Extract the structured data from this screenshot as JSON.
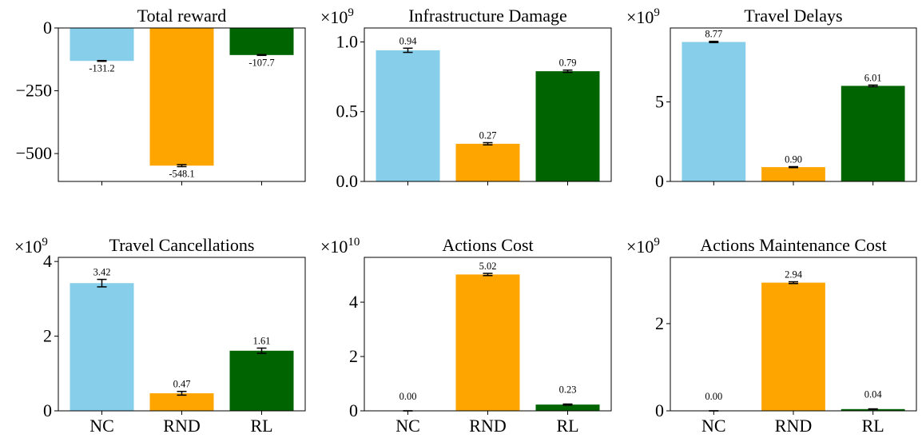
{
  "colors": {
    "NC": "#87ceeb",
    "RND": "#ffa500",
    "RL": "#006400"
  },
  "chart_data": [
    {
      "type": "bar",
      "title": "Total reward",
      "categories": [
        "NC",
        "RND",
        "RL"
      ],
      "show_xticklabels": false,
      "values": [
        -131.2,
        -548.1,
        -107.7
      ],
      "errors": [
        1.5,
        4,
        1.5
      ],
      "labels": [
        "-131.2",
        "-548.1",
        "-107.7"
      ],
      "multiplier": "",
      "ylim": [
        -611,
        0
      ],
      "yticks": [
        0,
        -250,
        -500
      ],
      "ytick_labels": [
        "0",
        "−250",
        "−500"
      ]
    },
    {
      "type": "bar",
      "title": "Infrastructure Damage",
      "categories": [
        "NC",
        "RND",
        "RL"
      ],
      "show_xticklabels": false,
      "values": [
        0.94,
        0.27,
        0.79
      ],
      "errors": [
        0.015,
        0.008,
        0.008
      ],
      "labels": [
        "0.94",
        "0.27",
        "0.79"
      ],
      "multiplier": "×10",
      "multiplier_exp": "9",
      "ylim": [
        0,
        1.1
      ],
      "yticks": [
        0,
        0.5,
        1.0
      ],
      "ytick_labels": [
        "0.0",
        "0.5",
        "1.0"
      ]
    },
    {
      "type": "bar",
      "title": "Travel Delays",
      "categories": [
        "NC",
        "RND",
        "RL"
      ],
      "show_xticklabels": false,
      "values": [
        8.77,
        0.9,
        6.01
      ],
      "errors": [
        0.04,
        0.03,
        0.05
      ],
      "labels": [
        "8.77",
        "0.90",
        "6.01"
      ],
      "multiplier": "×10",
      "multiplier_exp": "9",
      "ylim": [
        0,
        9.65
      ],
      "yticks": [
        0,
        5
      ],
      "ytick_labels": [
        "0",
        "5"
      ]
    },
    {
      "type": "bar",
      "title": "Travel Cancellations",
      "categories": [
        "NC",
        "RND",
        "RL"
      ],
      "show_xticklabels": true,
      "values": [
        3.42,
        0.47,
        1.61
      ],
      "errors": [
        0.1,
        0.05,
        0.07
      ],
      "labels": [
        "3.42",
        "0.47",
        "1.61"
      ],
      "multiplier": "×10",
      "multiplier_exp": "9",
      "ylim": [
        0,
        4.11
      ],
      "yticks": [
        0,
        2,
        4
      ],
      "ytick_labels": [
        "0",
        "2",
        "4"
      ]
    },
    {
      "type": "bar",
      "title": "Actions Cost",
      "categories": [
        "NC",
        "RND",
        "RL"
      ],
      "show_xticklabels": true,
      "values": [
        0.0,
        5.02,
        0.23
      ],
      "errors": [
        0.0,
        0.04,
        0.02
      ],
      "labels": [
        "0.00",
        "5.02",
        "0.23"
      ],
      "multiplier": "×10",
      "multiplier_exp": "10",
      "ylim": [
        0,
        5.65
      ],
      "yticks": [
        0,
        2,
        4
      ],
      "ytick_labels": [
        "0",
        "2",
        "4"
      ]
    },
    {
      "type": "bar",
      "title": "Actions Maintenance Cost",
      "categories": [
        "NC",
        "RND",
        "RL"
      ],
      "show_xticklabels": true,
      "values": [
        0.0,
        2.94,
        0.04
      ],
      "errors": [
        0.0,
        0.02,
        0.005
      ],
      "labels": [
        "0.00",
        "2.94",
        "0.04"
      ],
      "multiplier": "×10",
      "multiplier_exp": "9",
      "ylim": [
        0,
        3.52
      ],
      "yticks": [
        0,
        2
      ],
      "ytick_labels": [
        "0",
        "2"
      ]
    }
  ]
}
